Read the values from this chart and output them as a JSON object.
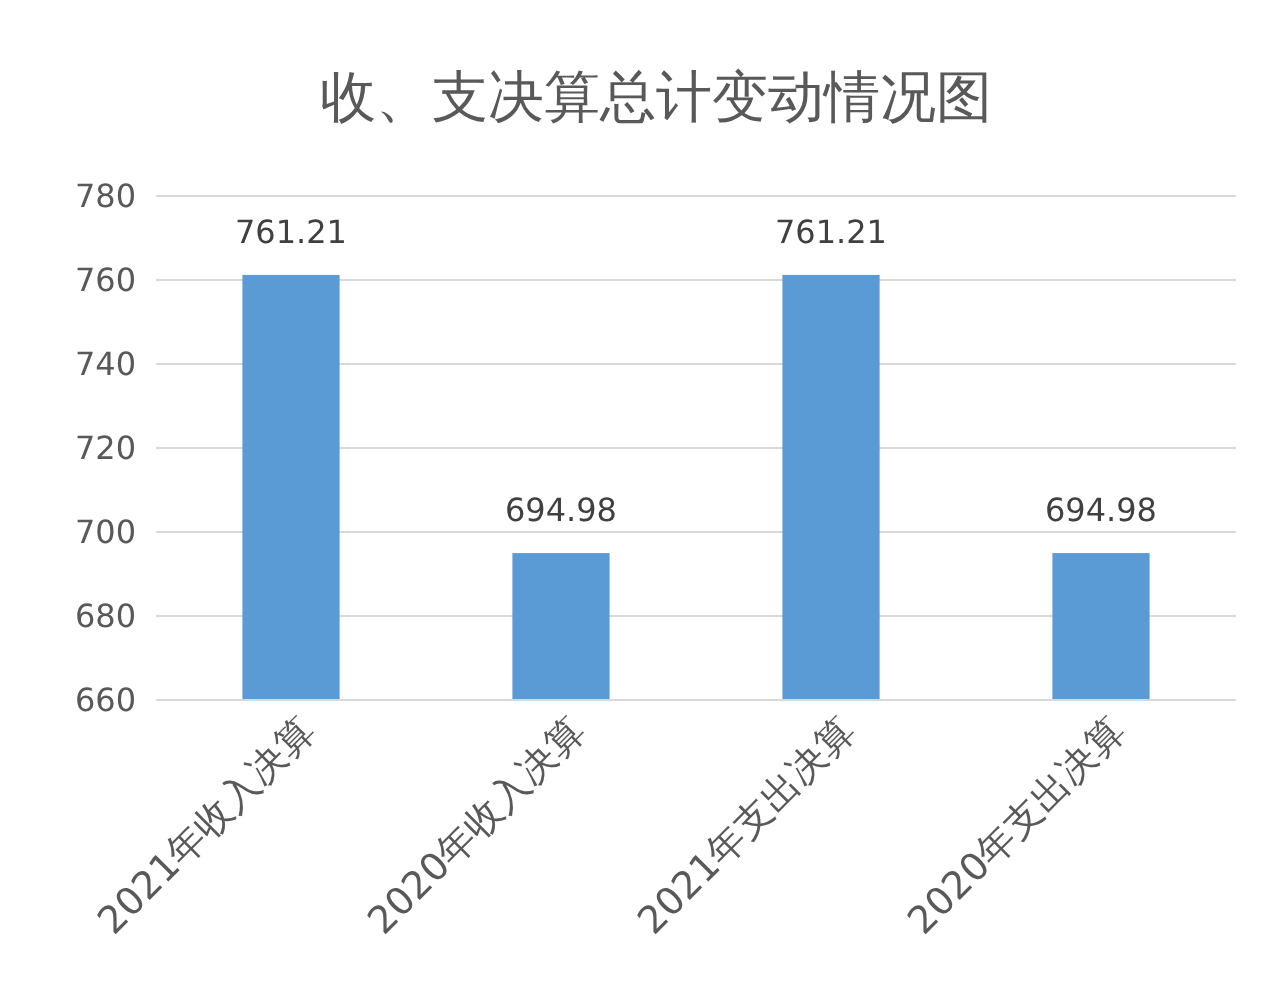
{
  "chart_data": {
    "type": "bar",
    "title": "收、支决算总计变动情况图",
    "categories": [
      "2021年收入决算",
      "2020年收入决算",
      "2021年支出决算",
      "2020年支出决算"
    ],
    "values": [
      761.21,
      694.98,
      761.21,
      694.98
    ],
    "color": "#5b9bd5",
    "ylim": [
      660,
      780
    ],
    "yticks": [
      660,
      680,
      700,
      720,
      740,
      760,
      780
    ],
    "grid": "y",
    "data_labels": true
  }
}
